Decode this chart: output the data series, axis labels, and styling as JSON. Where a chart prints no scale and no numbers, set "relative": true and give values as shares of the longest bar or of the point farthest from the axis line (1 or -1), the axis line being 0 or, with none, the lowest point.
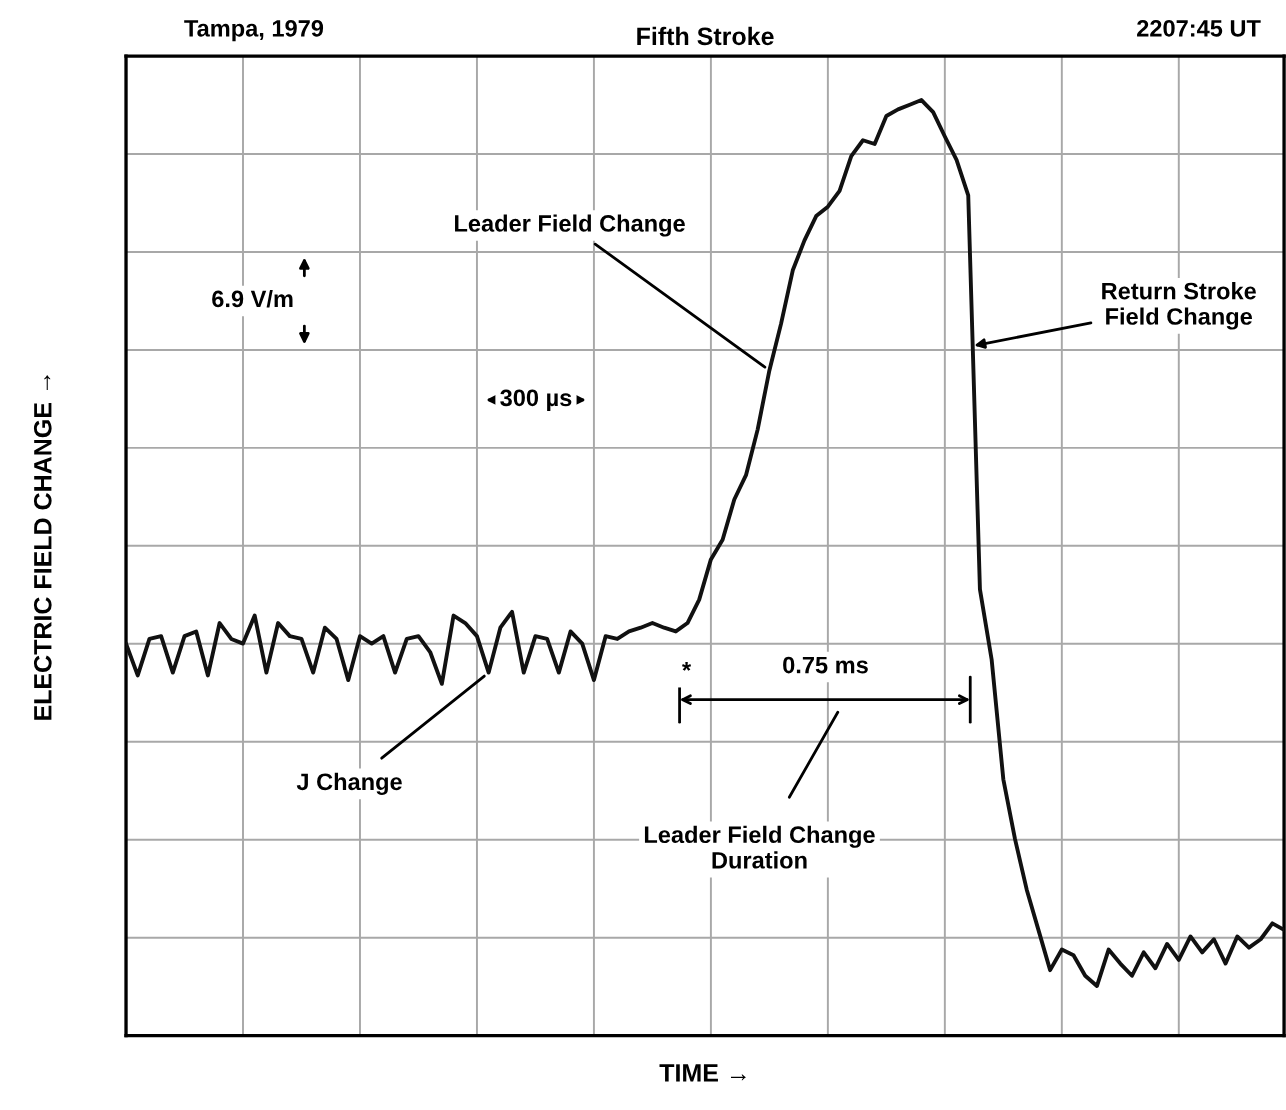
{
  "chart_data": {
    "type": "line",
    "relative": true,
    "title": "Fifth Stroke",
    "xlabel": "TIME →",
    "ylabel": "ELECTRIC FIELD CHANGE →",
    "grid": true,
    "tick_labels": false,
    "categories": [
      null,
      null,
      null,
      null,
      null,
      null,
      null,
      null,
      null,
      null,
      null,
      null,
      null,
      null,
      null,
      null,
      null,
      null,
      null,
      null,
      null,
      null,
      null,
      null,
      null,
      null,
      null,
      null,
      null,
      null,
      null,
      null,
      null,
      null,
      null,
      null,
      null,
      null,
      null,
      null,
      null,
      null,
      null,
      null,
      null,
      null,
      null,
      null,
      null,
      null,
      null,
      null,
      null,
      null,
      null,
      null,
      null,
      null,
      null,
      null,
      null,
      null,
      null,
      null,
      null,
      null,
      null,
      null,
      null,
      null,
      null,
      null,
      null,
      null,
      null,
      null,
      null,
      null,
      null,
      null,
      null,
      null,
      null,
      null,
      null,
      null,
      null,
      null,
      null,
      null,
      null,
      null,
      null,
      null,
      null,
      null,
      null,
      null,
      null,
      null
    ],
    "series": [
      {
        "color": "#111111",
        "values": [
          0.419,
          0.385,
          0.424,
          0.427,
          0.388,
          0.427,
          0.432,
          0.385,
          0.441,
          0.424,
          0.419,
          0.449,
          0.388,
          0.441,
          0.427,
          0.424,
          0.388,
          0.436,
          0.424,
          0.38,
          0.427,
          0.419,
          0.427,
          0.388,
          0.424,
          0.427,
          0.41,
          0.376,
          0.449,
          0.441,
          0.427,
          0.388,
          0.436,
          0.453,
          0.388,
          0.427,
          0.424,
          0.388,
          0.432,
          0.419,
          0.38,
          0.427,
          0.424,
          0.432,
          0.436,
          0.441,
          0.436,
          0.432,
          0.441,
          0.466,
          0.509,
          0.53,
          0.573,
          0.599,
          0.648,
          0.711,
          0.761,
          0.818,
          0.85,
          0.876,
          0.886,
          0.903,
          0.94,
          0.957,
          0.953,
          0.983,
          0.99,
          0.995,
          1.0,
          0.987,
          0.961,
          0.936,
          0.898,
          0.477,
          0.402,
          0.274,
          0.21,
          0.156,
          0.113,
          0.07,
          0.092,
          0.086,
          0.064,
          0.053,
          0.092,
          0.077,
          0.064,
          0.089,
          0.072,
          0.098,
          0.081,
          0.106,
          0.089,
          0.103,
          0.077,
          0.106,
          0.094,
          0.103,
          0.12,
          0.113
        ]
      }
    ],
    "annotations": [
      "Tampa, 1979",
      "2207:45 UT",
      "Leader Field Change",
      "6.9 V/m",
      "300 µs",
      "Return Stroke\nField Change",
      "J Change",
      "*",
      "0.75 ms",
      "Leader Field Change\nDuration"
    ]
  }
}
